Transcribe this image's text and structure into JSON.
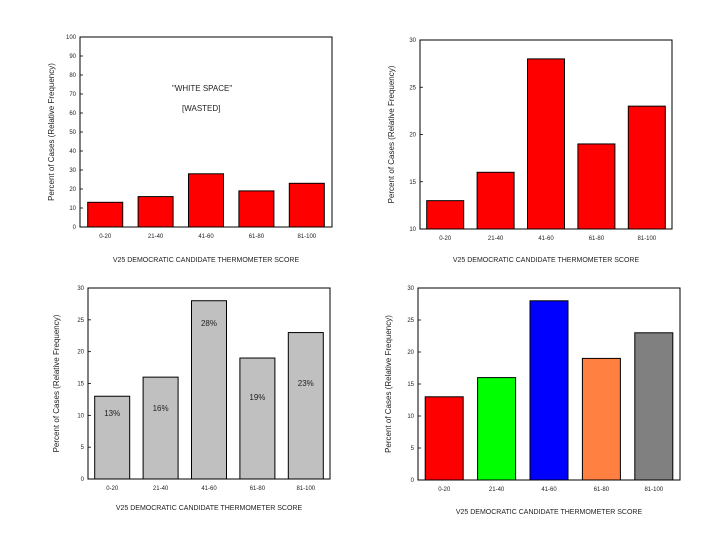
{
  "slide": {
    "annotation_line1": "\"WHITE SPACE\"",
    "annotation_line2": "[WASTED]"
  },
  "chart_data": [
    {
      "type": "bar",
      "categories": [
        "0-20",
        "21-40",
        "41-60",
        "61-80",
        "81-100"
      ],
      "values": [
        13,
        16,
        28,
        19,
        23
      ],
      "xlabel": "V25 DEMOCRATIC CANDIDATE THERMOMETER SCORE",
      "ylabel": "Percent of Cases (Relative Frequency)",
      "ylim": [
        0,
        100
      ],
      "yticks": [
        "0",
        "10",
        "20",
        "30",
        "40",
        "50",
        "60",
        "70",
        "80",
        "90",
        "100"
      ],
      "bar_colors": [
        "#ff0000",
        "#ff0000",
        "#ff0000",
        "#ff0000",
        "#ff0000"
      ],
      "grid": false
    },
    {
      "type": "bar",
      "categories": [
        "0-20",
        "21-40",
        "41-60",
        "61-80",
        "81-100"
      ],
      "values": [
        13,
        16,
        28,
        19,
        23
      ],
      "xlabel": "V25 DEMOCRATIC CANDIDATE THERMOMETER SCORE",
      "ylabel": "Percent of Cases (Relative Frequency)",
      "ylim": [
        10,
        30
      ],
      "yticks": [
        "10",
        "15",
        "20",
        "25",
        "30"
      ],
      "bar_colors": [
        "#ff0000",
        "#ff0000",
        "#ff0000",
        "#ff0000",
        "#ff0000"
      ],
      "grid": false
    },
    {
      "type": "bar",
      "categories": [
        "0-20",
        "21-40",
        "41-60",
        "61-80",
        "81-100"
      ],
      "values": [
        13,
        16,
        28,
        19,
        23
      ],
      "data_labels": [
        "13%",
        "16%",
        "28%",
        "19%",
        "23%"
      ],
      "xlabel": "V25 DEMOCRATIC CANDIDATE THERMOMETER SCORE",
      "ylabel": "Percent of Cases (Relative Frequency)",
      "ylim": [
        0,
        30
      ],
      "yticks": [
        "0",
        "5",
        "10",
        "15",
        "20",
        "25",
        "30"
      ],
      "bar_colors": [
        "#c0c0c0",
        "#c0c0c0",
        "#c0c0c0",
        "#c0c0c0",
        "#c0c0c0"
      ],
      "grid": false
    },
    {
      "type": "bar",
      "categories": [
        "0-20",
        "21-40",
        "41-60",
        "61-80",
        "81-100"
      ],
      "values": [
        13,
        16,
        28,
        19,
        23
      ],
      "xlabel": "V25 DEMOCRATIC CANDIDATE THERMOMETER SCORE",
      "ylabel": "Percent of Cases (Relative Frequency)",
      "ylim": [
        0,
        30
      ],
      "yticks": [
        "0",
        "5",
        "10",
        "15",
        "20",
        "25",
        "30"
      ],
      "bar_colors": [
        "#ff0000",
        "#00ff00",
        "#0000ff",
        "#ff8040",
        "#808080"
      ],
      "grid": false
    }
  ]
}
